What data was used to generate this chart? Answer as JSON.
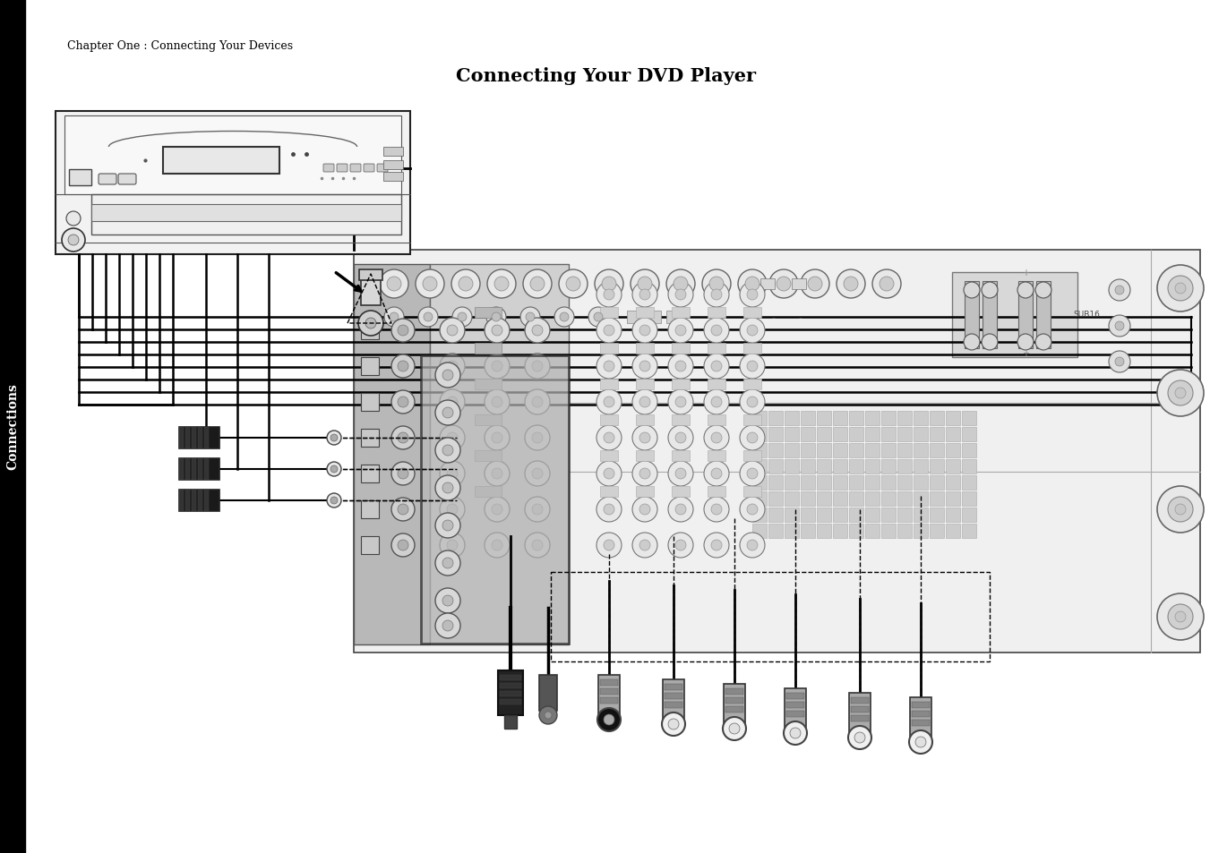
{
  "title": "Connecting Your DVD Player",
  "subtitle": "Chapter One : Connecting Your Devices",
  "sidebar_text": "Connections",
  "bg_color": "#ffffff",
  "sidebar_bg": "#000000",
  "sidebar_text_color": "#ffffff",
  "title_fontsize": 15,
  "subtitle_fontsize": 9,
  "lc": "#000000",
  "gray1": "#c8c8c8",
  "gray2": "#d8d8d8",
  "gray3": "#b0b0b0",
  "gray4": "#e8e8e8",
  "gray5": "#a0a0a0",
  "gray6": "#909090"
}
